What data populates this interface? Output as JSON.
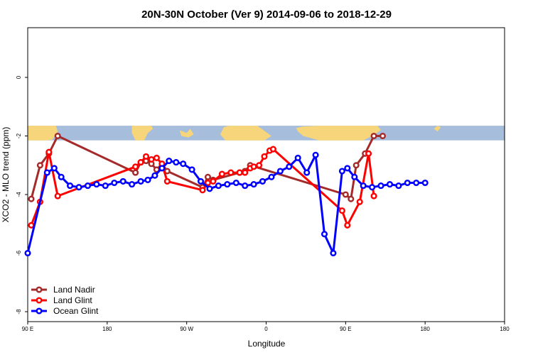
{
  "chart_data": {
    "type": "line",
    "title": "20N-30N October (Ver 9)   2014-09-06 to 2018-12-29",
    "xlabel": "Longitude",
    "ylabel": "XCO2 - MLO trend (ppm)",
    "xlim": [
      -90,
      180
    ],
    "ylim": [
      -8,
      2
    ],
    "x_ticks": [
      {
        "value": -90,
        "label": "90 E"
      },
      {
        "value": -45,
        "label": "180"
      },
      {
        "value": 0,
        "label": "90 W"
      },
      {
        "value": 45,
        "label": "0"
      },
      {
        "value": 90,
        "label": "90 E"
      },
      {
        "value": 135,
        "label": "180"
      }
    ],
    "y_ticks": [
      {
        "value": 0,
        "label": "0"
      },
      {
        "value": -2,
        "label": "-2"
      },
      {
        "value": -4,
        "label": "-4"
      },
      {
        "value": -6,
        "label": "-6"
      },
      {
        "value": -8,
        "label": "-8"
      }
    ],
    "map_band": {
      "ymin": -2.15,
      "ymax": -1.65,
      "ocean_color": "#a6bddb",
      "land_color": "#f7d57a"
    },
    "legend_position": "bottom-left",
    "series": [
      {
        "name": "Land Nadir",
        "color": "#a52a2a",
        "x": [
          -88,
          -83,
          -78,
          -73,
          -29,
          -26,
          -23,
          -20,
          -17,
          -14,
          -11,
          9,
          12,
          15,
          30,
          33,
          36,
          90,
          93,
          96,
          101,
          106,
          111
        ],
        "y": [
          -4.15,
          -3.0,
          -2.6,
          -2.0,
          -3.25,
          -2.9,
          -2.85,
          -2.95,
          -3.15,
          -2.95,
          -3.2,
          -3.75,
          -3.4,
          -3.5,
          -3.25,
          -3.2,
          -3.0,
          -4.0,
          -4.15,
          -3.0,
          -2.6,
          -2.0,
          -2.0
        ]
      },
      {
        "name": "Land Glint",
        "color": "#ff0000",
        "x": [
          -88,
          -83,
          -78,
          -73,
          -29,
          -26,
          -23,
          -20,
          -17,
          -14,
          -11,
          9,
          12,
          15,
          20,
          25,
          30,
          33,
          36,
          38,
          41,
          44,
          47,
          49,
          88,
          91,
          98,
          103,
          106
        ],
        "y": [
          -5.05,
          -4.25,
          -2.55,
          -4.05,
          -3.05,
          -2.9,
          -2.7,
          -2.8,
          -2.75,
          -2.95,
          -3.55,
          -3.85,
          -3.6,
          -3.55,
          -3.3,
          -3.25,
          -3.25,
          -3.25,
          -3.1,
          -3.05,
          -3.0,
          -2.7,
          -2.5,
          -2.45,
          -4.55,
          -5.05,
          -4.25,
          -2.6,
          -4.05
        ]
      },
      {
        "name": "Ocean Glint",
        "color": "#0000ff",
        "x": [
          -90,
          -79,
          -75,
          -71,
          -66,
          -61,
          -56,
          -51,
          -46,
          -41,
          -36,
          -31,
          -26,
          -22,
          -18,
          -14,
          -10,
          -6,
          -2,
          3,
          8,
          13,
          18,
          23,
          28,
          33,
          38,
          43,
          48,
          53,
          58,
          63,
          68,
          73,
          78,
          83,
          88,
          91,
          95,
          100,
          105,
          110,
          115,
          120,
          125,
          130,
          135
        ],
        "y": [
          -6.0,
          -3.25,
          -3.1,
          -3.4,
          -3.7,
          -3.75,
          -3.7,
          -3.65,
          -3.7,
          -3.6,
          -3.55,
          -3.65,
          -3.55,
          -3.5,
          -3.35,
          -3.1,
          -2.85,
          -2.9,
          -2.95,
          -3.15,
          -3.55,
          -3.8,
          -3.7,
          -3.65,
          -3.6,
          -3.7,
          -3.65,
          -3.55,
          -3.4,
          -3.2,
          -3.05,
          -2.75,
          -3.25,
          -2.65,
          -5.35,
          -6.0,
          -3.2,
          -3.1,
          -3.4,
          -3.7,
          -3.75,
          -3.7,
          -3.65,
          -3.7,
          -3.6,
          -3.6,
          -3.6
        ]
      }
    ]
  }
}
